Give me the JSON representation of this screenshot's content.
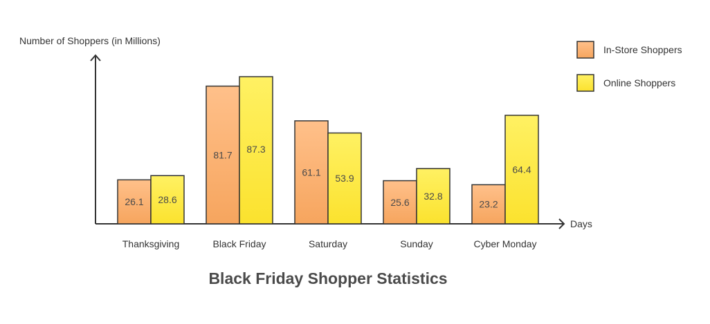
{
  "chart_data": {
    "type": "bar",
    "title": "Black Friday Shopper Statistics",
    "xlabel": "Days",
    "ylabel": "Number of Shoppers (in Millions)",
    "categories": [
      "Thanksgiving",
      "Black Friday",
      "Saturday",
      "Sunday",
      "Cyber Monday"
    ],
    "series": [
      {
        "name": "In-Store Shoppers",
        "values": [
          26.1,
          81.7,
          61.1,
          25.6,
          23.2
        ],
        "color_top": "#FFC08A",
        "color_bottom": "#F6A55E"
      },
      {
        "name": "Online Shoppers",
        "values": [
          28.6,
          87.3,
          53.9,
          32.8,
          64.4
        ],
        "color_top": "#FFF163",
        "color_bottom": "#FBE22E"
      }
    ],
    "ylim": [
      0,
      100
    ],
    "grid": false,
    "legend_position": "top-right",
    "stroke_color": "#333333"
  }
}
